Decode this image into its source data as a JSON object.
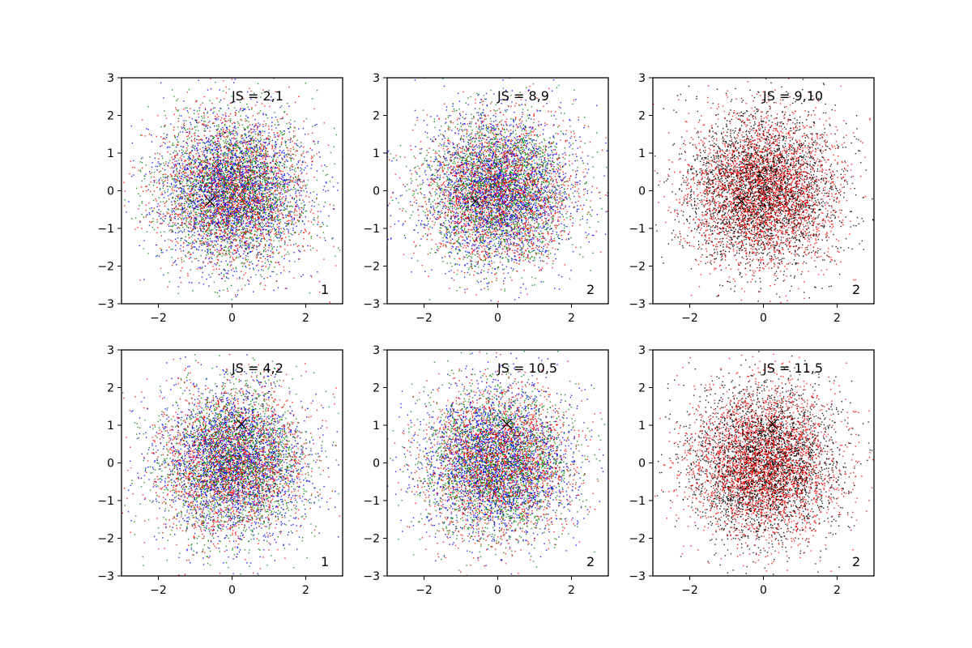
{
  "chart_data": [
    {
      "type": "scatter",
      "xlim": [
        -3,
        3
      ],
      "ylim": [
        -3,
        3
      ],
      "xticks": [
        -2,
        0,
        2
      ],
      "yticks": [
        -3,
        -2,
        -1,
        0,
        1,
        2,
        3
      ],
      "xtick_labels": [
        "−2",
        "0",
        "2"
      ],
      "ytick_labels": [
        "−3",
        "−2",
        "−1",
        "0",
        "1",
        "2",
        "3"
      ],
      "annotation_top": "JS = 2,1",
      "annotation_corner": "1",
      "marker": {
        "x": -0.6,
        "y": -0.28,
        "symbol": "x"
      },
      "grid": false,
      "series_colors": [
        "#0000ff",
        "#ff0000",
        "#008000"
      ],
      "points_per_series": 2200
    },
    {
      "type": "scatter",
      "xlim": [
        -3,
        3
      ],
      "ylim": [
        -3,
        3
      ],
      "xticks": [
        -2,
        0,
        2
      ],
      "yticks": [
        -3,
        -2,
        -1,
        0,
        1,
        2,
        3
      ],
      "xtick_labels": [
        "−2",
        "0",
        "2"
      ],
      "ytick_labels": [
        "−3",
        "−2",
        "−1",
        "0",
        "1",
        "2",
        "3"
      ],
      "annotation_top": "JS = 8,9",
      "annotation_corner": "2",
      "marker": {
        "x": -0.6,
        "y": -0.28,
        "symbol": "x"
      },
      "grid": false,
      "series_colors": [
        "#0000ff",
        "#ff0000",
        "#008000"
      ],
      "points_per_series": 2200
    },
    {
      "type": "scatter",
      "xlim": [
        -3,
        3
      ],
      "ylim": [
        -3,
        3
      ],
      "xticks": [
        -2,
        0,
        2
      ],
      "yticks": [
        -3,
        -2,
        -1,
        0,
        1,
        2,
        3
      ],
      "xtick_labels": [
        "−2",
        "0",
        "2"
      ],
      "ytick_labels": [
        "−3",
        "−2",
        "−1",
        "0",
        "1",
        "2",
        "3"
      ],
      "annotation_top": "JS = 9,10",
      "annotation_corner": "2",
      "marker": {
        "x": -0.6,
        "y": -0.28,
        "symbol": "x"
      },
      "grid": false,
      "series_colors": [
        "#000000",
        "#ff0000"
      ],
      "points_per_series": 3000
    },
    {
      "type": "scatter",
      "xlim": [
        -3,
        3
      ],
      "ylim": [
        -3,
        3
      ],
      "xticks": [
        -2,
        0,
        2
      ],
      "yticks": [
        -3,
        -2,
        -1,
        0,
        1,
        2,
        3
      ],
      "xtick_labels": [
        "−2",
        "0",
        "2"
      ],
      "ytick_labels": [
        "−3",
        "−2",
        "−1",
        "0",
        "1",
        "2",
        "3"
      ],
      "annotation_top": "JS = 4,2",
      "annotation_corner": "1",
      "marker": {
        "x": 0.25,
        "y": 1.03,
        "symbol": "x"
      },
      "grid": false,
      "series_colors": [
        "#0000ff",
        "#ff0000",
        "#008000"
      ],
      "points_per_series": 2200
    },
    {
      "type": "scatter",
      "xlim": [
        -3,
        3
      ],
      "ylim": [
        -3,
        3
      ],
      "xticks": [
        -2,
        0,
        2
      ],
      "yticks": [
        -3,
        -2,
        -1,
        0,
        1,
        2,
        3
      ],
      "xtick_labels": [
        "−2",
        "0",
        "2"
      ],
      "ytick_labels": [
        "−3",
        "−2",
        "−1",
        "0",
        "1",
        "2",
        "3"
      ],
      "annotation_top": "JS = 10,5",
      "annotation_corner": "2",
      "marker": {
        "x": 0.25,
        "y": 1.03,
        "symbol": "x"
      },
      "grid": false,
      "series_colors": [
        "#0000ff",
        "#ff0000",
        "#008000"
      ],
      "points_per_series": 2200
    },
    {
      "type": "scatter",
      "xlim": [
        -3,
        3
      ],
      "ylim": [
        -3,
        3
      ],
      "xticks": [
        -2,
        0,
        2
      ],
      "yticks": [
        -3,
        -2,
        -1,
        0,
        1,
        2,
        3
      ],
      "xtick_labels": [
        "−2",
        "0",
        "2"
      ],
      "ytick_labels": [
        "−3",
        "−2",
        "−1",
        "0",
        "1",
        "2",
        "3"
      ],
      "annotation_top": "JS = 11,5",
      "annotation_corner": "2",
      "marker": {
        "x": 0.25,
        "y": 1.03,
        "symbol": "x"
      },
      "grid": false,
      "series_colors": [
        "#000000",
        "#ff0000"
      ],
      "points_per_series": 3000
    }
  ]
}
